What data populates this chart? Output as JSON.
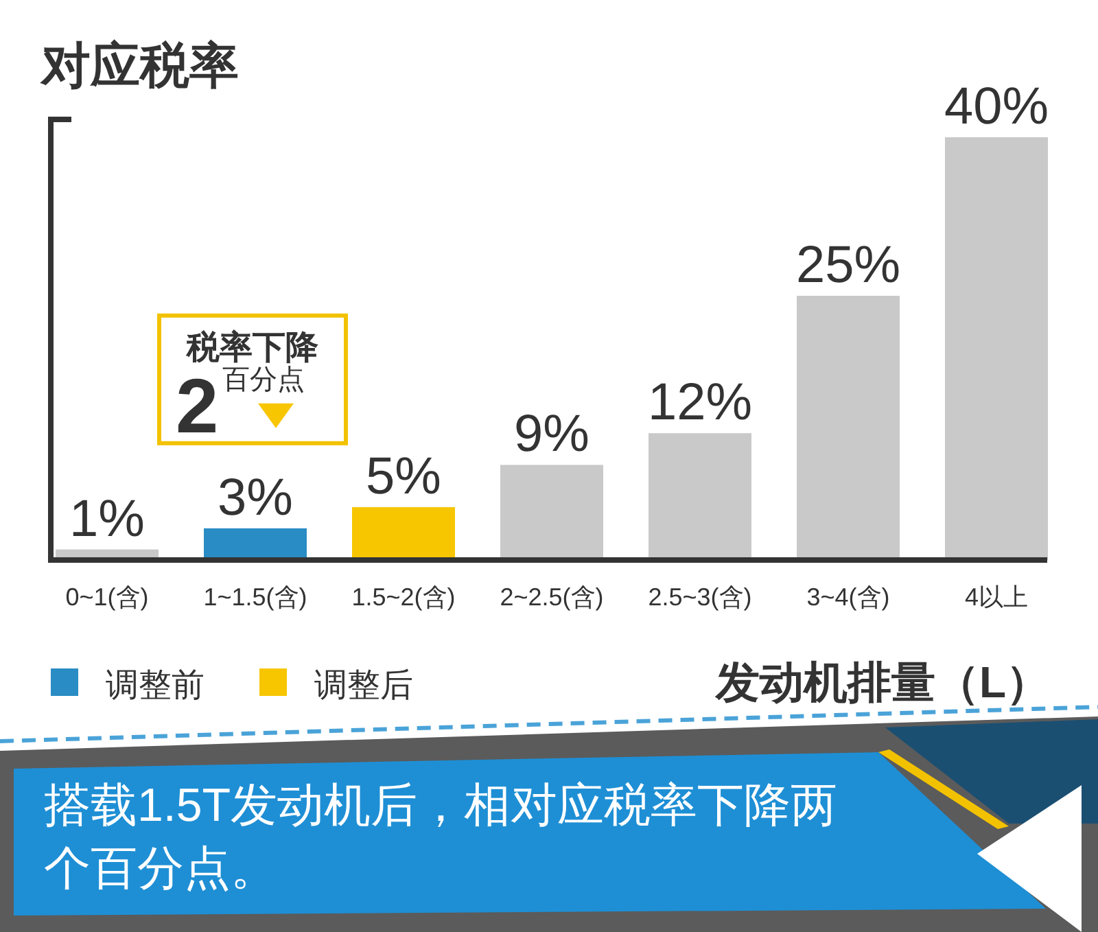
{
  "chart_data": {
    "type": "bar",
    "title": "对应税率",
    "xlabel": "发动机排量（L）",
    "categories": [
      "0~1(含)",
      "1~1.5(含)",
      "1.5~2(含)",
      "2~2.5(含)",
      "2.5~3(含)",
      "3~4(含)",
      "4以上"
    ],
    "series": [
      {
        "name": "调整前",
        "color": "#2a8cc4",
        "values": [
          null,
          3,
          null,
          null,
          null,
          null,
          null
        ],
        "value_labels": [
          null,
          "3%",
          null,
          null,
          null,
          null,
          null
        ]
      },
      {
        "name": "调整后",
        "color": "#f7c600",
        "values": [
          null,
          null,
          5,
          null,
          null,
          null,
          null
        ],
        "value_labels": [
          null,
          null,
          "5%",
          null,
          null,
          null,
          null
        ]
      },
      {
        "color": "#c9c9c9",
        "values": [
          1,
          null,
          null,
          9,
          12,
          25,
          40
        ],
        "value_labels": [
          "1%",
          null,
          null,
          "9%",
          "12%",
          "25%",
          "40%"
        ]
      }
    ],
    "legend": "bottom left",
    "tick_labels": "x",
    "annotations": [
      {
        "text": "税率下降\n2百分点",
        "x": "1~1.5(含)",
        "y": 3
      },
      "搭载1.5T发动机后，相对应税率下降两个百分点。"
    ]
  }
}
